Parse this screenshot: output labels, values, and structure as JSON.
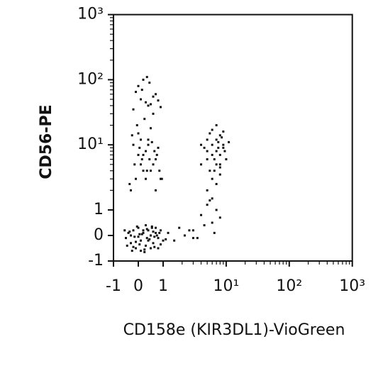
{
  "chart_data": {
    "type": "scatter",
    "x_label": "CD158e (KIR3DL1)-VioGreen",
    "y_label": "CD56-PE",
    "xscale": "biexponential",
    "yscale": "biexponential",
    "xlim": [
      -1,
      1000
    ],
    "ylim": [
      -1,
      1000
    ],
    "xticks": [
      -1,
      0,
      1,
      {
        "value": 10,
        "label": "10¹"
      },
      {
        "value": 100,
        "label": "10²"
      },
      {
        "value": 1000,
        "label": "10³"
      }
    ],
    "yticks": [
      -1,
      0,
      1,
      {
        "value": 10,
        "label": "10¹"
      },
      {
        "value": 100,
        "label": "10²"
      },
      {
        "value": 1000,
        "label": "10³"
      }
    ],
    "xminorticks": [
      2,
      3,
      4,
      5,
      6,
      7,
      8,
      9,
      20,
      30,
      40,
      50,
      60,
      70,
      80,
      90,
      200,
      300,
      400,
      500,
      600,
      700,
      800,
      900
    ],
    "yminorticks": [
      2,
      3,
      4,
      5,
      6,
      7,
      8,
      9,
      20,
      30,
      40,
      50,
      60,
      70,
      80,
      90,
      200,
      300,
      400,
      500,
      600,
      700,
      800,
      900
    ],
    "color": "#111111",
    "x": [
      -0.5,
      -0.4,
      -0.3,
      -0.2,
      -0.1,
      0,
      0.1,
      0.2,
      0.3,
      0.4,
      0.5,
      0.6,
      0.7,
      0.8,
      0.9,
      1.0,
      -0.45,
      -0.35,
      -0.25,
      -0.15,
      -0.05,
      0.05,
      0.15,
      0.25,
      0.35,
      0.45,
      0.55,
      0.65,
      0.75,
      0.85,
      -0.3,
      -0.1,
      0.1,
      0.3,
      0.5,
      0.7,
      0.9,
      0,
      0.2,
      0.4,
      0.6,
      0.8,
      -0.2,
      0.05,
      0.35,
      0.65,
      1.1,
      -0.55,
      0.25,
      0.55,
      -0.3,
      -0.1,
      0.1,
      0.3,
      0.5,
      0.7,
      0.9,
      -0.2,
      0,
      0.2,
      0.4,
      0.6,
      0.8,
      -0.35,
      -0.05,
      0.15,
      0.35,
      0.55,
      0.75,
      0.95,
      -0.25,
      0.05,
      0.25,
      0.45,
      0.65,
      0.85,
      -0.15,
      0.1,
      0.3,
      0.5,
      0.7,
      0,
      0.2,
      0.4,
      0.6,
      -0.2,
      0.1,
      0.4,
      0.7,
      0,
      0.3,
      0.6,
      0.9,
      -0.1,
      0.2,
      0.5,
      0.8,
      0.15,
      0.45,
      0.35,
      4,
      5,
      6,
      7,
      8,
      9,
      10,
      5.5,
      6.5,
      7.5,
      8.5,
      4.5,
      5,
      6,
      7,
      8,
      9,
      6,
      7,
      5,
      8,
      6.5,
      7.5,
      5.5,
      9.5,
      4,
      11,
      6,
      7,
      8,
      5,
      6,
      7,
      8,
      9,
      3,
      4,
      5,
      6,
      7,
      3.5,
      4.5,
      5.5,
      6.5,
      8,
      1.2,
      1.5,
      1.8,
      2.2,
      2.6,
      3
    ],
    "y": [
      -0.1,
      0.1,
      -0.3,
      0.2,
      -0.5,
      0.3,
      -0.2,
      0.1,
      -0.4,
      0.2,
      0,
      -0.3,
      0.1,
      -0.1,
      0.2,
      -0.2,
      -0.4,
      0.15,
      -0.6,
      -0.05,
      0.35,
      -0.35,
      0.05,
      -0.55,
      0.25,
      -0.15,
      0.3,
      -0.45,
      0.0,
      0.1,
      0.0,
      -0.25,
      -0.6,
      0.4,
      -0.5,
      0.3,
      -0.35,
      -0.05,
      0.2,
      -0.2,
      0.15,
      -0.5,
      -0.45,
      0.05,
      -0.1,
      -0.05,
      -0.15,
      0.2,
      -0.65,
      0.35,
      2,
      3,
      5,
      8,
      4,
      6,
      3,
      10,
      15,
      7,
      12,
      5,
      9,
      2.5,
      20,
      6,
      4,
      11,
      7,
      3,
      14,
      9,
      25,
      6,
      8,
      4,
      5,
      12,
      3,
      18,
      2,
      7,
      4,
      10,
      30,
      35,
      50,
      40,
      60,
      80,
      45,
      55,
      38,
      65,
      100,
      42,
      48,
      70,
      90,
      110,
      5,
      8,
      10,
      12,
      7,
      9,
      6,
      15,
      4,
      11,
      13,
      9,
      6,
      7,
      20,
      5,
      10,
      3,
      8,
      12,
      14,
      6,
      9,
      4,
      8,
      10,
      11,
      17,
      2.5,
      3.5,
      2,
      1.5,
      5,
      4.5,
      16,
      0.2,
      0.8,
      1.2,
      0.5,
      1.0,
      -0.1,
      0.4,
      1.4,
      0.1,
      0.7,
      0.1,
      -0.2,
      0.3,
      0,
      0.2,
      -0.1
    ]
  }
}
